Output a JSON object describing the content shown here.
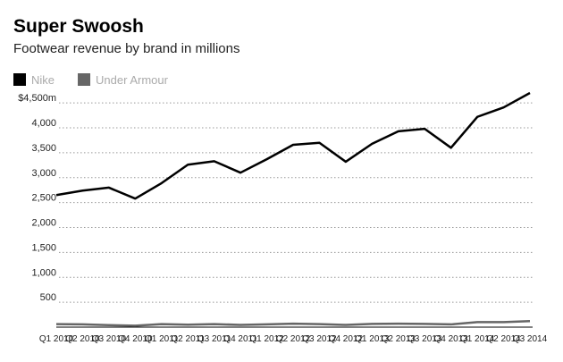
{
  "chart_data": {
    "type": "line",
    "title": "Super Swoosh",
    "subtitle": "Footwear revenue by brand in millions",
    "categories": [
      "Q1 2010",
      "Q2 2010",
      "Q3 2010",
      "Q4 2010",
      "Q1 2011",
      "Q2 2011",
      "Q3 2011",
      "Q4 2011",
      "Q1 2012",
      "Q2 2012",
      "Q3 2012",
      "Q4 2012",
      "Q1 2013",
      "Q2 2013",
      "Q3 2013",
      "Q4 2013",
      "Q1 2014",
      "Q2 2014",
      "Q3 2014"
    ],
    "series": [
      {
        "name": "Nike",
        "color": "#000000",
        "values": [
          2650,
          2740,
          2800,
          2580,
          2890,
          3260,
          3330,
          3100,
          3370,
          3660,
          3700,
          3320,
          3680,
          3930,
          3980,
          3600,
          4220,
          4410,
          4700
        ]
      },
      {
        "name": "Under Armour",
        "color": "#666666",
        "values": [
          60,
          55,
          40,
          30,
          60,
          50,
          60,
          45,
          55,
          70,
          60,
          45,
          65,
          70,
          65,
          55,
          100,
          100,
          120
        ]
      }
    ],
    "ylim": [
      0,
      4700
    ],
    "yticks": [
      {
        "value": 500,
        "label": "500"
      },
      {
        "value": 1000,
        "label": "1,000"
      },
      {
        "value": 1500,
        "label": "1,500"
      },
      {
        "value": 2000,
        "label": "2,000"
      },
      {
        "value": 2500,
        "label": "2,500"
      },
      {
        "value": 3000,
        "label": "3,000"
      },
      {
        "value": 3500,
        "label": "3,500"
      },
      {
        "value": 4000,
        "label": "4,000"
      },
      {
        "value": 4500,
        "label": "$4,500m"
      }
    ],
    "grid": true
  }
}
